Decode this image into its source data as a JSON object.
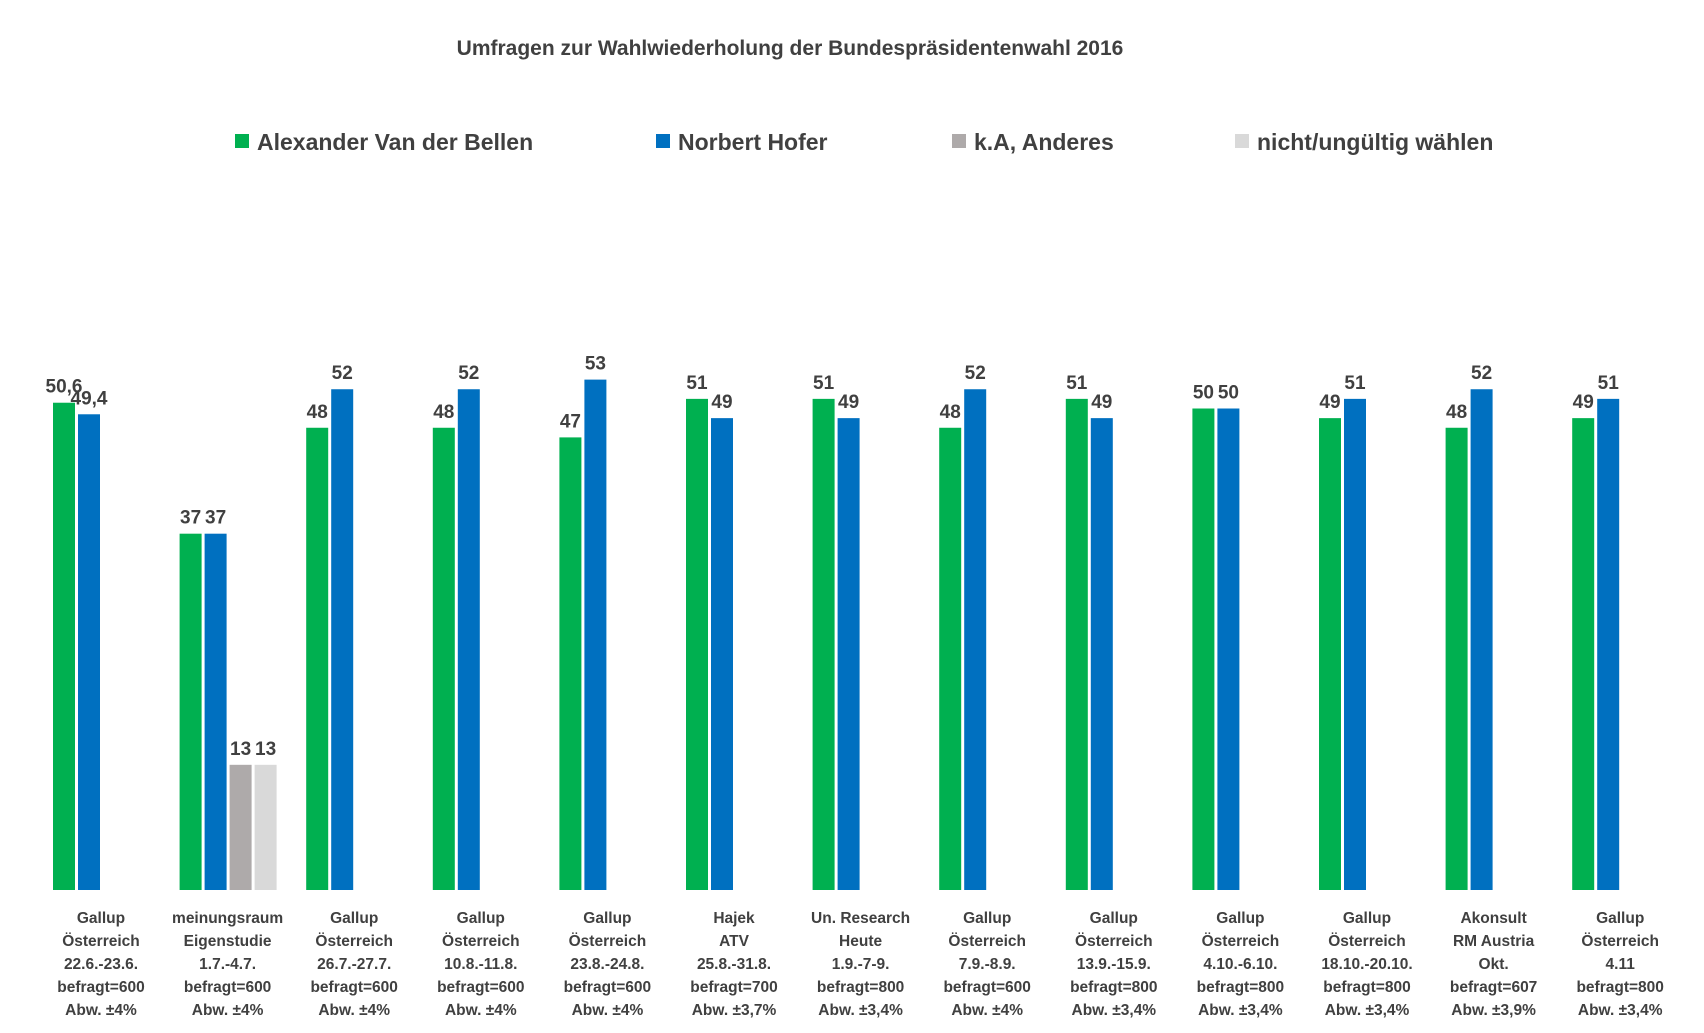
{
  "chart_data": {
    "type": "bar",
    "title": "Umfragen zur Wahlwiederholung der Bundespräsidentenwahl 2016",
    "legend_position": "top",
    "grid": false,
    "ylim": [
      0,
      60
    ],
    "series": [
      {
        "name": "Alexander Van der Bellen",
        "color": "#00b050",
        "values": [
          50.6,
          37,
          48,
          48,
          47,
          51,
          51,
          48,
          51,
          50,
          49,
          48,
          49
        ],
        "labels": [
          "50,6",
          "37",
          "48",
          "48",
          "47",
          "51",
          "51",
          "48",
          "51",
          "50",
          "49",
          "48",
          "49"
        ]
      },
      {
        "name": "Norbert Hofer",
        "color": "#0070c0",
        "values": [
          49.4,
          37,
          52,
          52,
          53,
          49,
          49,
          52,
          49,
          50,
          51,
          52,
          51
        ],
        "labels": [
          "49,4",
          "37",
          "52",
          "52",
          "53",
          "49",
          "49",
          "52",
          "49",
          "50",
          "51",
          "52",
          "51"
        ]
      },
      {
        "name": "k.A, Anderes",
        "color": "#aeaaaa",
        "values": [
          null,
          13,
          null,
          null,
          null,
          null,
          null,
          null,
          null,
          null,
          null,
          null,
          null
        ],
        "labels": [
          "",
          "13",
          "",
          "",
          "",
          "",
          "",
          "",
          "",
          "",
          "",
          "",
          ""
        ]
      },
      {
        "name": "nicht/ungültig wählen",
        "color": "#d9d9d9",
        "values": [
          null,
          13,
          null,
          null,
          null,
          null,
          null,
          null,
          null,
          null,
          null,
          null,
          null
        ],
        "labels": [
          "",
          "13",
          "",
          "",
          "",
          "",
          "",
          "",
          "",
          "",
          "",
          "",
          ""
        ]
      }
    ],
    "categories": [
      [
        "Gallup",
        "Österreich",
        "22.6.-23.6.",
        "befragt=600",
        "Abw. ±4%"
      ],
      [
        "meinungsraum",
        "Eigenstudie",
        "1.7.-4.7.",
        "befragt=600",
        "Abw. ±4%"
      ],
      [
        "Gallup",
        "Österreich",
        "26.7.-27.7.",
        "befragt=600",
        "Abw. ±4%"
      ],
      [
        "Gallup",
        "Österreich",
        "10.8.-11.8.",
        "befragt=600",
        "Abw. ±4%"
      ],
      [
        "Gallup",
        "Österreich",
        "23.8.-24.8.",
        "befragt=600",
        "Abw. ±4%"
      ],
      [
        "Hajek",
        "ATV",
        "25.8.-31.8.",
        "befragt=700",
        "Abw. ±3,7%"
      ],
      [
        "Un. Research",
        "Heute",
        "1.9.-7-9.",
        "befragt=800",
        "Abw. ±3,4%"
      ],
      [
        "Gallup",
        "Österreich",
        "7.9.-8.9.",
        "befragt=600",
        "Abw. ±4%"
      ],
      [
        "Gallup",
        "Österreich",
        "13.9.-15.9.",
        "befragt=800",
        "Abw. ±3,4%"
      ],
      [
        "Gallup",
        "Österreich",
        "4.10.-6.10.",
        "befragt=800",
        "Abw. ±3,4%"
      ],
      [
        "Gallup",
        "Österreich",
        "18.10.-20.10.",
        "befragt=800",
        "Abw. ±3,4%"
      ],
      [
        "Akonsult",
        "RM Austria",
        "Okt.",
        "befragt=607",
        "Abw. ±3,9%"
      ],
      [
        "Gallup",
        "Österreich",
        "4.11",
        "befragt=800",
        "Abw. ±3,4%"
      ]
    ]
  }
}
